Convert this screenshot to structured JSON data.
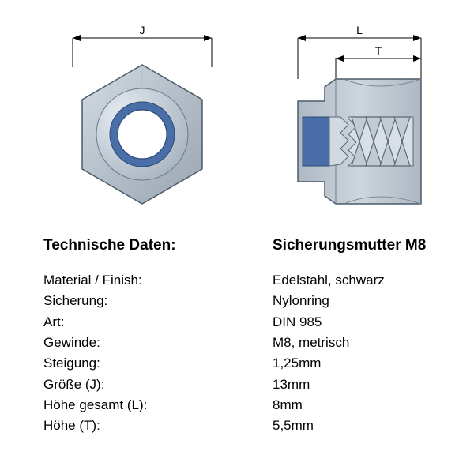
{
  "diagram": {
    "top_view": {
      "dim_label": "J",
      "hex_outer": 78,
      "nylon_outer_r": 41,
      "nylon_inner_r": 31,
      "colors": {
        "hex_fill": "#b9c3cc",
        "hex_stroke": "#4a5a68",
        "nylon_fill": "#4a6ea8",
        "hole_fill": "#ffffff",
        "dim_line": "#000000"
      }
    },
    "side_view": {
      "dim_label_L": "L",
      "dim_label_T": "T",
      "colors": {
        "body_fill": "#c2cad2",
        "body_stroke": "#4a5a68",
        "nylon_fill": "#4a6ea8",
        "thread_stroke": "#5a6a78",
        "dim_line": "#000000"
      }
    }
  },
  "specs": {
    "heading_left": "Technische Daten:",
    "heading_right": "Sicherungsmutter M8",
    "rows": [
      {
        "label": "Material / Finish:",
        "value": "Edelstahl, schwarz"
      },
      {
        "label": "Sicherung:",
        "value": "Nylonring"
      },
      {
        "label": "Art:",
        "value": "DIN 985"
      },
      {
        "label": "Gewinde:",
        "value": "M8, metrisch"
      },
      {
        "label": "Steigung:",
        "value": "1,25mm"
      },
      {
        "label": "Größe (J):",
        "value": "13mm"
      },
      {
        "label": "Höhe gesamt (L):",
        "value": "8mm"
      },
      {
        "label": "Höhe (T):",
        "value": "5,5mm"
      }
    ]
  },
  "layout": {
    "font_family": "Arial, Helvetica, sans-serif",
    "heading_fontsize": 19,
    "row_fontsize": 17,
    "row_lineheight": 1.55,
    "background": "#ffffff"
  }
}
